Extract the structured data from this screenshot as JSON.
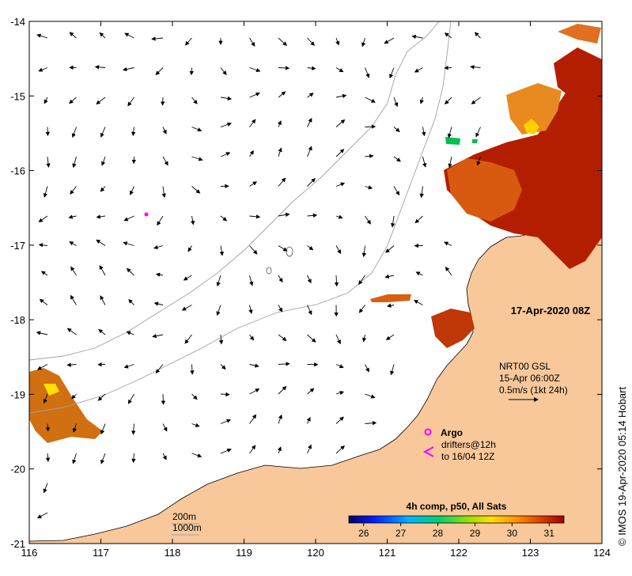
{
  "map": {
    "lon_ticks": [
      "116",
      "117",
      "118",
      "119",
      "120",
      "121",
      "122",
      "123",
      "124"
    ],
    "lat_ticks": [
      "-14",
      "-15",
      "-16",
      "-17",
      "-18",
      "-19",
      "-20",
      "-21"
    ],
    "lon_range": [
      116,
      124
    ],
    "lat_range": [
      -21,
      -14
    ]
  },
  "timestamp": "17-Apr-2020 08Z",
  "currents_legend": {
    "product": "NRT00 GSL",
    "date": "15-Apr 06:00Z",
    "scale": "0.5m/s (1kt 24h)"
  },
  "argo_legend": {
    "argo_label": "Argo",
    "drifters_line1": "drifters@12h",
    "drifters_line2": "to 16/04 12Z"
  },
  "isobaths": {
    "label_200": "200m",
    "label_1000": "1000m"
  },
  "colorbar": {
    "title": "4h comp, p50, All Sats",
    "ticks": [
      "26",
      "27",
      "28",
      "29",
      "30",
      "31"
    ],
    "range": [
      25.6,
      31.4
    ]
  },
  "credit": "© IMOS 19-Apr-2020 05:14 Hobart",
  "colors": {
    "land": "#f8c89a",
    "ocean": "#ffffff",
    "argo": "#ff00ff",
    "isobath": "#a0a0a0"
  }
}
